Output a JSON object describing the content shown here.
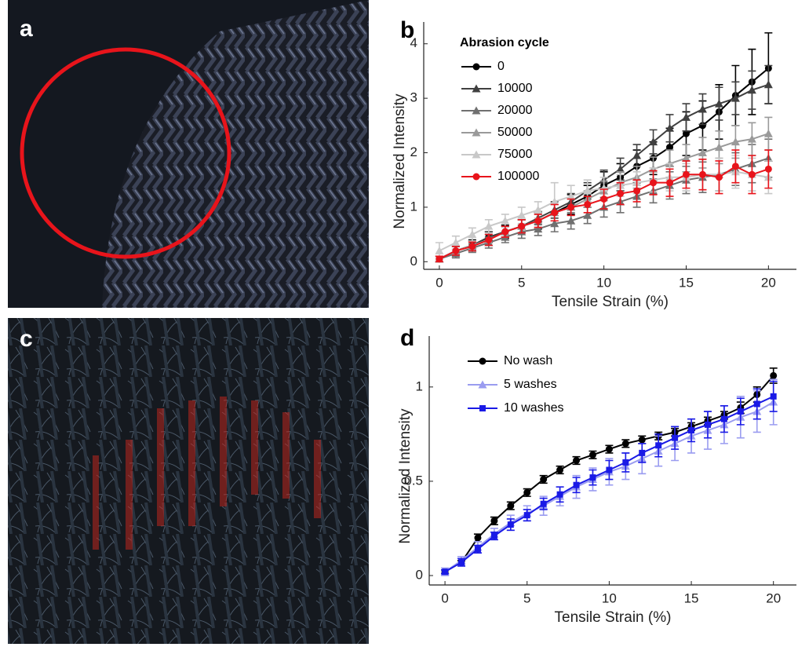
{
  "photos": [
    {
      "label": "a"
    },
    {
      "label": "c"
    }
  ],
  "chart_data": [
    {
      "type": "line",
      "panel_label": "b",
      "xlabel": "Tensile Strain (%)",
      "ylabel": "Normalized Intensity",
      "legend_title": "Abrasion cycle",
      "legend": "upper left",
      "x": [
        0,
        1,
        2,
        3,
        4,
        5,
        6,
        7,
        8,
        9,
        10,
        11,
        12,
        13,
        14,
        15,
        16,
        17,
        18,
        19,
        20
      ],
      "xlim": [
        -0.95,
        21.7
      ],
      "xticks": [
        0,
        5,
        10,
        15,
        20
      ],
      "ylim": [
        -0.14,
        4.4
      ],
      "yticks": [
        0,
        1,
        2,
        3,
        4
      ],
      "series": [
        {
          "name": "0",
          "color": "#000000",
          "marker": "circle",
          "values": [
            0.05,
            0.2,
            0.3,
            0.45,
            0.55,
            0.65,
            0.75,
            0.9,
            1.05,
            1.2,
            1.4,
            1.55,
            1.75,
            1.9,
            2.1,
            2.35,
            2.5,
            2.75,
            3.05,
            3.3,
            3.55
          ],
          "errors": [
            0.05,
            0.08,
            0.1,
            0.1,
            0.12,
            0.12,
            0.15,
            0.15,
            0.18,
            0.2,
            0.25,
            0.25,
            0.3,
            0.3,
            0.35,
            0.4,
            0.45,
            0.5,
            0.55,
            0.6,
            0.65
          ]
        },
        {
          "name": "10000",
          "color": "#404040",
          "marker": "triangle",
          "values": [
            0.05,
            0.2,
            0.3,
            0.45,
            0.55,
            0.65,
            0.8,
            0.95,
            1.1,
            1.3,
            1.5,
            1.7,
            1.95,
            2.2,
            2.45,
            2.65,
            2.8,
            2.9,
            3.0,
            3.15,
            3.25
          ],
          "errors": [
            0.05,
            0.08,
            0.08,
            0.1,
            0.1,
            0.12,
            0.12,
            0.15,
            0.15,
            0.15,
            0.18,
            0.2,
            0.2,
            0.22,
            0.25,
            0.25,
            0.28,
            0.3,
            0.3,
            0.35,
            0.35
          ]
        },
        {
          "name": "20000",
          "color": "#707070",
          "marker": "triangle",
          "values": [
            0.05,
            0.15,
            0.25,
            0.35,
            0.45,
            0.55,
            0.6,
            0.7,
            0.75,
            0.85,
            1.0,
            1.1,
            1.2,
            1.3,
            1.4,
            1.5,
            1.55,
            1.6,
            1.7,
            1.8,
            1.9
          ],
          "errors": [
            0.05,
            0.08,
            0.08,
            0.1,
            0.1,
            0.12,
            0.12,
            0.15,
            0.15,
            0.15,
            0.18,
            0.2,
            0.2,
            0.22,
            0.25,
            0.25,
            0.28,
            0.3,
            0.3,
            0.35,
            0.35
          ]
        },
        {
          "name": "50000",
          "color": "#9a9a9a",
          "marker": "triangle",
          "values": [
            0.05,
            0.2,
            0.3,
            0.4,
            0.55,
            0.65,
            0.75,
            0.9,
            1.0,
            1.15,
            1.3,
            1.45,
            1.55,
            1.7,
            1.8,
            1.9,
            2.0,
            2.1,
            2.2,
            2.25,
            2.35
          ],
          "errors": [
            0.05,
            0.08,
            0.08,
            0.1,
            0.1,
            0.12,
            0.12,
            0.15,
            0.15,
            0.15,
            0.18,
            0.2,
            0.2,
            0.22,
            0.25,
            0.25,
            0.28,
            0.3,
            0.3,
            0.3,
            0.3
          ]
        },
        {
          "name": "75000",
          "color": "#c8c8c8",
          "marker": "triangle",
          "values": [
            0.2,
            0.35,
            0.5,
            0.65,
            0.75,
            0.85,
            0.95,
            1.1,
            1.2,
            1.3,
            1.35,
            1.4,
            1.45,
            1.5,
            1.55,
            1.55,
            1.6,
            1.6,
            1.65,
            1.6,
            1.55
          ],
          "errors": [
            0.15,
            0.12,
            0.12,
            0.12,
            0.12,
            0.15,
            0.15,
            0.35,
            0.2,
            0.2,
            0.2,
            0.2,
            0.2,
            0.22,
            0.25,
            0.25,
            0.28,
            0.3,
            0.3,
            0.3,
            0.3
          ]
        },
        {
          "name": "100000",
          "color": "#e8141b",
          "marker": "circle",
          "values": [
            0.05,
            0.2,
            0.28,
            0.4,
            0.55,
            0.65,
            0.75,
            0.9,
            1.0,
            1.05,
            1.15,
            1.25,
            1.3,
            1.45,
            1.45,
            1.6,
            1.6,
            1.55,
            1.75,
            1.6,
            1.7
          ],
          "errors": [
            0.05,
            0.08,
            0.08,
            0.1,
            0.1,
            0.12,
            0.12,
            0.15,
            0.15,
            0.15,
            0.18,
            0.2,
            0.2,
            0.22,
            0.25,
            0.25,
            0.28,
            0.3,
            0.3,
            0.35,
            0.35
          ]
        }
      ]
    },
    {
      "type": "line",
      "panel_label": "d",
      "xlabel": "Tensile Strain (%)",
      "ylabel": "Normalized Intensity",
      "legend": "upper left",
      "x": [
        0,
        1,
        2,
        3,
        4,
        5,
        6,
        7,
        8,
        9,
        10,
        11,
        12,
        13,
        14,
        15,
        16,
        17,
        18,
        19,
        20
      ],
      "xlim": [
        -0.96,
        21.4
      ],
      "xticks": [
        0,
        5,
        10,
        15,
        20
      ],
      "ylim": [
        -0.05,
        1.27
      ],
      "yticks": [
        0,
        0.5,
        1
      ],
      "series": [
        {
          "name": "No wash",
          "color": "#000000",
          "marker": "circle",
          "values": [
            0.02,
            0.07,
            0.2,
            0.29,
            0.37,
            0.44,
            0.51,
            0.56,
            0.61,
            0.64,
            0.67,
            0.7,
            0.72,
            0.74,
            0.76,
            0.79,
            0.82,
            0.85,
            0.89,
            0.96,
            1.06
          ],
          "errors": [
            0.01,
            0.01,
            0.02,
            0.02,
            0.02,
            0.02,
            0.02,
            0.02,
            0.02,
            0.02,
            0.02,
            0.02,
            0.02,
            0.02,
            0.02,
            0.02,
            0.02,
            0.02,
            0.03,
            0.04,
            0.04
          ]
        },
        {
          "name": "5 washes",
          "color": "#9a9cf0",
          "marker": "triangle",
          "values": [
            0.02,
            0.08,
            0.15,
            0.22,
            0.28,
            0.33,
            0.37,
            0.42,
            0.47,
            0.51,
            0.55,
            0.58,
            0.62,
            0.66,
            0.7,
            0.74,
            0.77,
            0.8,
            0.84,
            0.87,
            0.92
          ],
          "errors": [
            0.02,
            0.02,
            0.03,
            0.03,
            0.04,
            0.04,
            0.05,
            0.05,
            0.06,
            0.06,
            0.07,
            0.07,
            0.08,
            0.08,
            0.09,
            0.09,
            0.1,
            0.1,
            0.11,
            0.11,
            0.12
          ]
        },
        {
          "name": "10 washes",
          "color": "#1a1ae6",
          "marker": "square",
          "values": [
            0.02,
            0.07,
            0.14,
            0.21,
            0.27,
            0.32,
            0.38,
            0.43,
            0.48,
            0.52,
            0.56,
            0.6,
            0.65,
            0.69,
            0.73,
            0.77,
            0.8,
            0.83,
            0.87,
            0.91,
            0.95
          ],
          "errors": [
            0.01,
            0.02,
            0.02,
            0.02,
            0.03,
            0.03,
            0.03,
            0.04,
            0.04,
            0.04,
            0.05,
            0.05,
            0.05,
            0.06,
            0.06,
            0.06,
            0.07,
            0.07,
            0.07,
            0.08,
            0.08
          ]
        }
      ]
    }
  ]
}
